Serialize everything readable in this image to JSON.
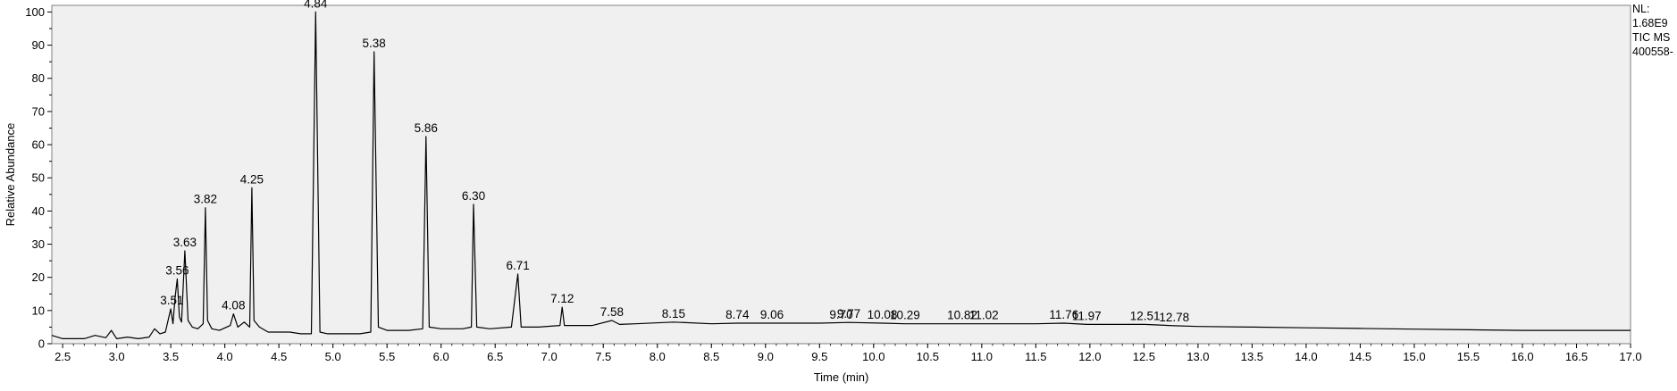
{
  "chart_data": {
    "type": "line",
    "title": "",
    "xlabel": "Time (min)",
    "ylabel": "Relative Abundance",
    "xlim": [
      2.4,
      17.0
    ],
    "ylim": [
      0,
      102
    ],
    "grid": false,
    "legend": "none",
    "x_ticks": [
      "2.5",
      "3.0",
      "3.5",
      "4.0",
      "4.5",
      "5.0",
      "5.5",
      "6.0",
      "6.5",
      "7.0",
      "7.5",
      "8.0",
      "8.5",
      "9.0",
      "9.5",
      "10.0",
      "10.5",
      "11.0",
      "11.5",
      "12.0",
      "12.5",
      "13.0",
      "13.5",
      "14.0",
      "14.5",
      "15.0",
      "15.5",
      "16.0",
      "16.5",
      "17.0"
    ],
    "y_ticks": [
      "0",
      "10",
      "20",
      "30",
      "40",
      "50",
      "60",
      "70",
      "80",
      "90",
      "100"
    ],
    "peaks": [
      {
        "label": "3.51",
        "x": 3.51,
        "y": 10.5
      },
      {
        "label": "3.56",
        "x": 3.56,
        "y": 19.5
      },
      {
        "label": "3.63",
        "x": 3.63,
        "y": 28
      },
      {
        "label": "3.82",
        "x": 3.82,
        "y": 41
      },
      {
        "label": "4.08",
        "x": 4.08,
        "y": 9
      },
      {
        "label": "4.25",
        "x": 4.25,
        "y": 47
      },
      {
        "label": "4.84",
        "x": 4.84,
        "y": 100
      },
      {
        "label": "5.38",
        "x": 5.38,
        "y": 88
      },
      {
        "label": "5.86",
        "x": 5.86,
        "y": 62.5
      },
      {
        "label": "6.30",
        "x": 6.3,
        "y": 42
      },
      {
        "label": "6.71",
        "x": 6.71,
        "y": 21
      },
      {
        "label": "7.12",
        "x": 7.12,
        "y": 11
      },
      {
        "label": "7.58",
        "x": 7.58,
        "y": 7
      },
      {
        "label": "8.15",
        "x": 8.15,
        "y": 6.5
      },
      {
        "label": "8.74",
        "x": 8.74,
        "y": 6.2
      },
      {
        "label": "9.06",
        "x": 9.06,
        "y": 6.2
      },
      {
        "label": "9.70",
        "x": 9.7,
        "y": 6.2
      },
      {
        "label": "9.77",
        "x": 9.77,
        "y": 6.4
      },
      {
        "label": "10.08",
        "x": 10.08,
        "y": 6.2
      },
      {
        "label": "10.29",
        "x": 10.29,
        "y": 6.0
      },
      {
        "label": "10.82",
        "x": 10.82,
        "y": 6.0
      },
      {
        "label": "11.02",
        "x": 11.02,
        "y": 6.0
      },
      {
        "label": "11.76",
        "x": 11.76,
        "y": 6.2
      },
      {
        "label": "11.97",
        "x": 11.97,
        "y": 5.8
      },
      {
        "label": "12.51",
        "x": 12.51,
        "y": 5.8
      },
      {
        "label": "12.78",
        "x": 12.78,
        "y": 5.4
      }
    ],
    "series": [
      {
        "x": [
          2.4,
          2.5,
          2.7,
          2.8,
          2.9,
          2.95,
          3.0,
          3.1,
          3.2,
          3.3,
          3.35,
          3.4,
          3.45,
          3.5,
          3.52,
          3.54,
          3.56,
          3.58,
          3.6,
          3.63,
          3.66,
          3.7,
          3.75,
          3.8,
          3.82,
          3.84,
          3.88,
          3.95,
          4.05,
          4.08,
          4.12,
          4.18,
          4.23,
          4.25,
          4.27,
          4.32,
          4.4,
          4.5,
          4.6,
          4.7,
          4.8,
          4.84,
          4.88,
          4.95,
          5.1,
          5.25,
          5.35,
          5.38,
          5.42,
          5.5,
          5.7,
          5.83,
          5.86,
          5.89,
          6.0,
          6.2,
          6.28,
          6.3,
          6.33,
          6.45,
          6.65,
          6.71,
          6.74,
          6.9,
          7.1,
          7.12,
          7.14,
          7.4,
          7.58,
          7.65,
          7.8,
          8.15,
          8.5,
          8.74,
          9.06,
          9.5,
          9.77,
          10.08,
          10.29,
          10.82,
          11.02,
          11.5,
          11.76,
          11.97,
          12.51,
          12.78,
          13.0,
          13.5,
          14.0,
          14.5,
          15.0,
          15.5,
          16.0,
          16.5,
          17.0
        ],
        "y": [
          2.5,
          1.5,
          1.5,
          2.5,
          1.8,
          4.0,
          1.5,
          2.0,
          1.5,
          2.0,
          4.5,
          3.0,
          3.5,
          10.5,
          6.0,
          14.0,
          19.5,
          8.0,
          6.5,
          28.0,
          7.0,
          5.0,
          4.5,
          6.0,
          41.0,
          7.0,
          4.5,
          4.0,
          5.5,
          9.0,
          5.0,
          6.5,
          5.0,
          47.0,
          7.0,
          5.0,
          3.5,
          3.5,
          3.5,
          3.0,
          3.0,
          100.0,
          3.5,
          3.0,
          3.0,
          3.0,
          3.5,
          88.0,
          5.0,
          4.0,
          4.0,
          4.5,
          62.5,
          5.0,
          4.5,
          4.5,
          5.0,
          42.0,
          5.0,
          4.5,
          5.0,
          21.0,
          5.0,
          5.0,
          5.5,
          11.0,
          5.5,
          5.5,
          7.0,
          5.8,
          6.0,
          6.5,
          6.0,
          6.2,
          6.2,
          6.2,
          6.4,
          6.2,
          6.0,
          6.0,
          6.0,
          6.0,
          6.2,
          5.8,
          5.8,
          5.4,
          5.2,
          5.0,
          4.8,
          4.6,
          4.4,
          4.2,
          4.0,
          4.0,
          4.0
        ]
      }
    ],
    "side_info": [
      "NL:",
      "1.68E9",
      "TIC  MS",
      "400558-"
    ]
  }
}
